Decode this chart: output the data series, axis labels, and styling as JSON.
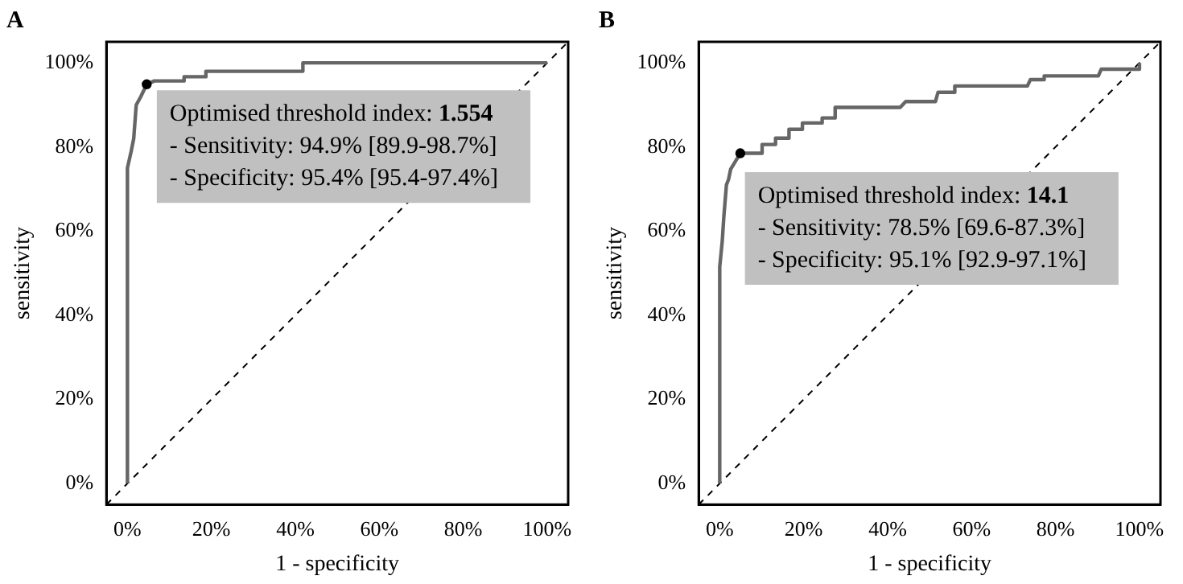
{
  "chart_data": [
    {
      "type": "line",
      "title": "A",
      "xlabel": "1 - specificity",
      "ylabel": "sensitivity",
      "xlim": [
        -5,
        105
      ],
      "ylim": [
        -5,
        105
      ],
      "xticks": [
        {
          "value": 0,
          "label": "0%"
        },
        {
          "value": 20,
          "label": "20%"
        },
        {
          "value": 40,
          "label": "40%"
        },
        {
          "value": 60,
          "label": "60%"
        },
        {
          "value": 80,
          "label": "80%"
        },
        {
          "value": 100,
          "label": "100%"
        }
      ],
      "yticks": [
        {
          "value": 0,
          "label": "0%"
        },
        {
          "value": 20,
          "label": "20%"
        },
        {
          "value": 40,
          "label": "40%"
        },
        {
          "value": 60,
          "label": "60%"
        },
        {
          "value": 80,
          "label": "80%"
        },
        {
          "value": 100,
          "label": "100%"
        }
      ],
      "grid": false,
      "legend": false,
      "annotations": [
        "Optimised threshold index: 1.554",
        "- Sensitivity: 94.9% [89.9-98.7%]",
        "- Specificity: 95.4% [95.4-97.4%]"
      ],
      "series": [
        {
          "marker": "none",
          "line_style": "dashed",
          "color": "#000000",
          "x": [
            -5,
            105
          ],
          "values": [
            -5,
            105
          ]
        },
        {
          "marker": "none",
          "line_style": "solid",
          "color": "#666666",
          "x": [
            0,
            0,
            0.9,
            1.5,
            2.1,
            3.2,
            4.6,
            6.4,
            13.5,
            13.5,
            18.7,
            18.7,
            41.8,
            41.8,
            100
          ],
          "values": [
            0,
            75,
            79,
            82,
            90,
            92,
            94.9,
            95.7,
            95.7,
            96.7,
            96.7,
            98,
            98,
            100,
            100
          ]
        },
        {
          "type": "scatter",
          "marker": "circle",
          "color": "#000000",
          "x": [
            4.6
          ],
          "values": [
            94.9
          ]
        }
      ]
    },
    {
      "type": "line",
      "title": "B",
      "xlabel": "1 - specificity",
      "ylabel": "sensitivity",
      "xlim": [
        -5,
        105
      ],
      "ylim": [
        -5,
        105
      ],
      "xticks": [
        {
          "value": 0,
          "label": "0%"
        },
        {
          "value": 20,
          "label": "20%"
        },
        {
          "value": 40,
          "label": "40%"
        },
        {
          "value": 60,
          "label": "60%"
        },
        {
          "value": 80,
          "label": "80%"
        },
        {
          "value": 100,
          "label": "100%"
        }
      ],
      "yticks": [
        {
          "value": 0,
          "label": "0%"
        },
        {
          "value": 20,
          "label": "20%"
        },
        {
          "value": 40,
          "label": "40%"
        },
        {
          "value": 60,
          "label": "60%"
        },
        {
          "value": 80,
          "label": "80%"
        },
        {
          "value": 100,
          "label": "100%"
        }
      ],
      "grid": false,
      "legend": false,
      "annotations": [
        "Optimised threshold index: 14.1",
        "- Sensitivity: 78.5% [69.6-87.3%]",
        "- Specificity: 95.1% [92.9-97.1%]"
      ],
      "series": [
        {
          "marker": "none",
          "line_style": "dashed",
          "color": "#000000",
          "x": [
            -5,
            105
          ],
          "values": [
            -5,
            105
          ]
        },
        {
          "marker": "none",
          "line_style": "solid",
          "color": "#666666",
          "x": [
            0,
            0,
            0.6,
            1,
            1.6,
            2.1,
            2.6,
            4.9,
            10.1,
            10.1,
            13.3,
            13.3,
            16.5,
            16.5,
            19.7,
            19.7,
            24.4,
            24.4,
            27.5,
            27.5,
            43,
            44.3,
            51.4,
            52,
            56,
            56,
            73.3,
            74,
            77.3,
            77.3,
            90.2,
            90.9,
            99.9,
            100
          ],
          "values": [
            0,
            51.5,
            57.6,
            63.7,
            71,
            72.3,
            74.7,
            78.5,
            78.5,
            80.6,
            80.6,
            82.1,
            82.1,
            84.2,
            84.2,
            85.7,
            85.7,
            86.9,
            86.9,
            89.4,
            89.4,
            90.8,
            90.8,
            93,
            93,
            94.5,
            94.5,
            96,
            96,
            96.9,
            96.9,
            98.5,
            98.5,
            100
          ]
        },
        {
          "type": "scatter",
          "marker": "circle",
          "color": "#000000",
          "x": [
            4.9
          ],
          "values": [
            78.5
          ]
        }
      ]
    }
  ]
}
